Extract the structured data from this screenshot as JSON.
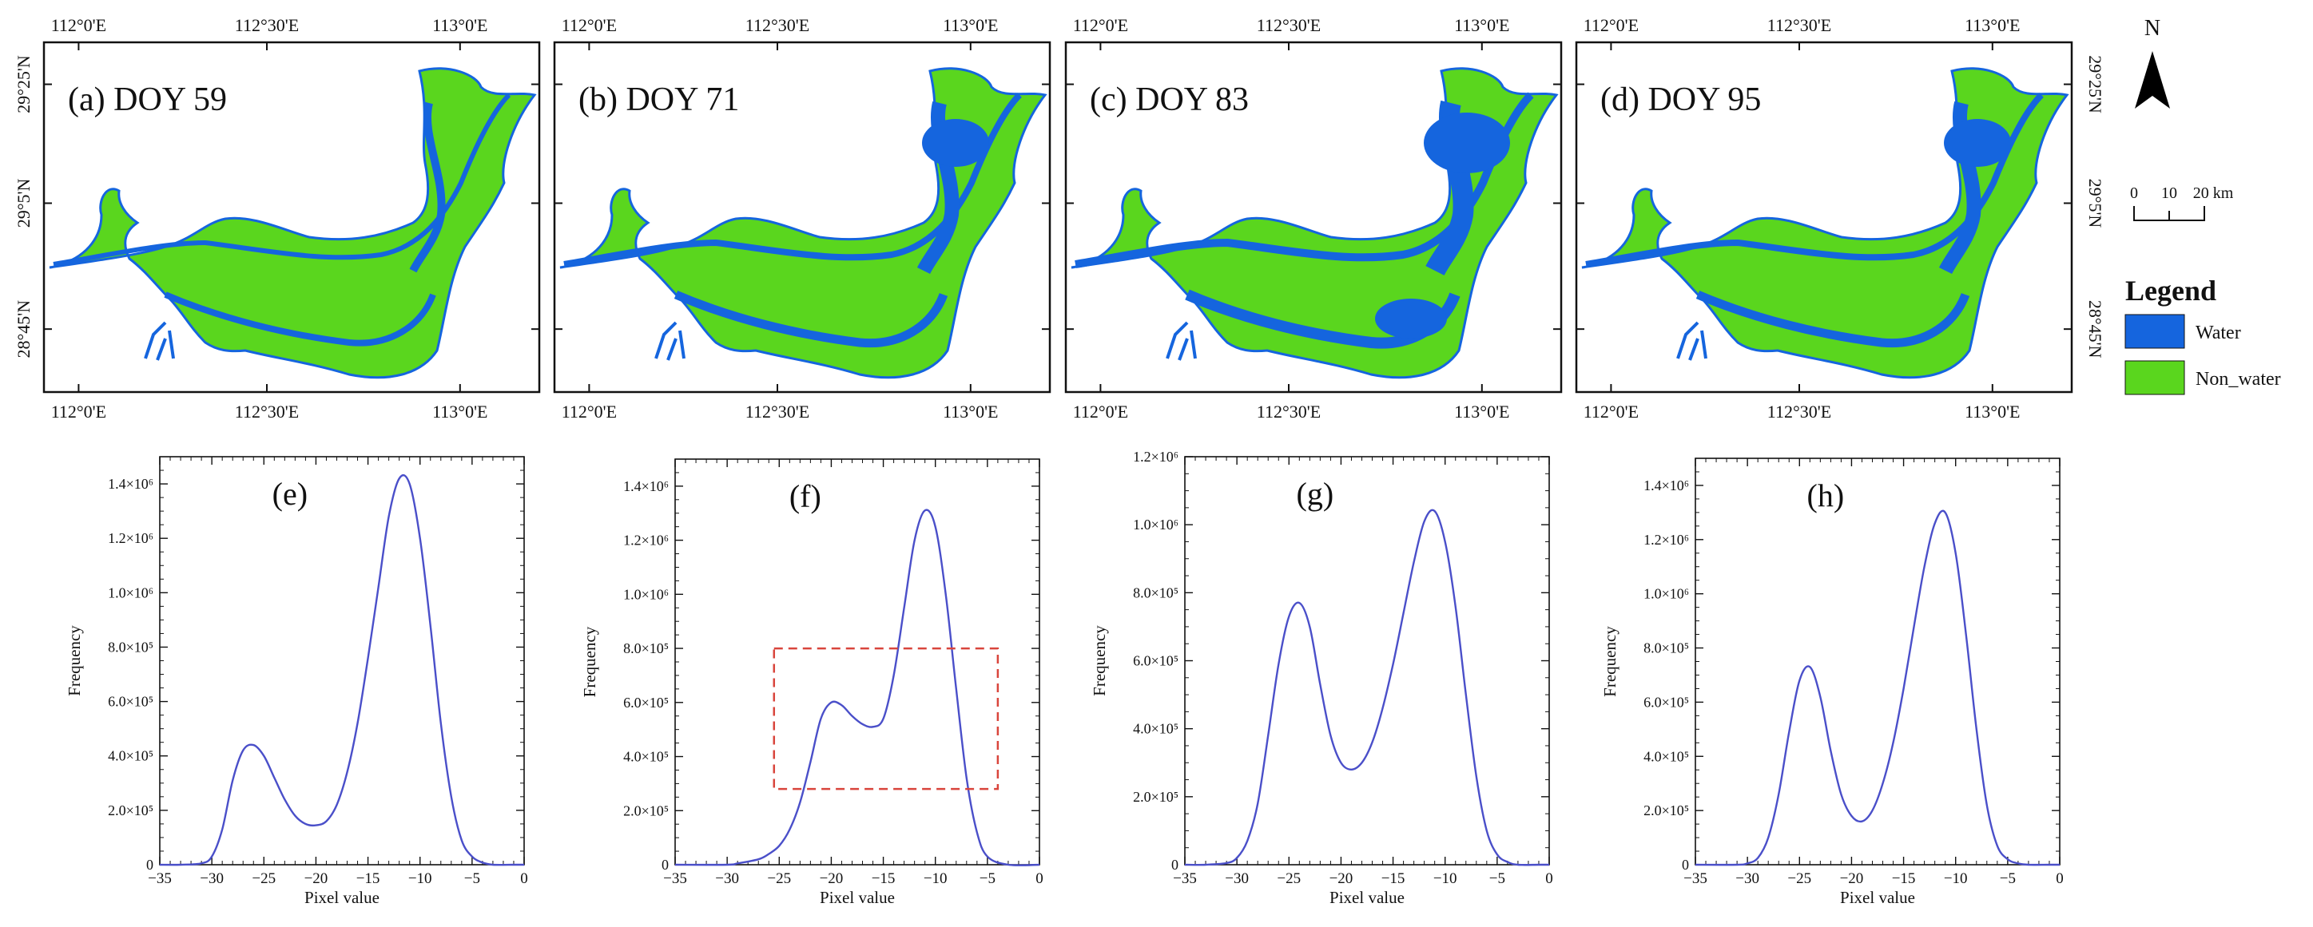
{
  "colors": {
    "water": "#1565de",
    "non_water": "#5ad61e",
    "curve": "#4a4fc9",
    "box": "#d9453c",
    "frame": "#111111"
  },
  "maps": {
    "lon_labels": [
      "112°0'E",
      "112°30'E",
      "113°0'E"
    ],
    "lat_labels": [
      "29°25'N",
      "29°5'N",
      "28°45'N"
    ],
    "panels": [
      {
        "label": "(a)  DOY 59"
      },
      {
        "label": "(b)  DOY 71"
      },
      {
        "label": "(c)  DOY 83"
      },
      {
        "label": "(d)  DOY 95"
      }
    ]
  },
  "north_arrow": {
    "label": "N",
    "icon": "north-arrow-icon"
  },
  "scale_bar": {
    "ticks": [
      "0",
      "10",
      "20 km"
    ]
  },
  "legend": {
    "title": "Legend",
    "items": [
      {
        "label": "Water",
        "color": "#1565de"
      },
      {
        "label": "Non_water",
        "color": "#5ad61e"
      }
    ]
  },
  "chart_data": [
    {
      "type": "line",
      "panel_label": "(e)",
      "title": "(e)",
      "xlabel": "Pixel value",
      "ylabel": "Frequency",
      "xlim": [
        -35,
        0
      ],
      "ylim": [
        0,
        1500000
      ],
      "xticks": [
        -35,
        -30,
        -25,
        -20,
        -15,
        -10,
        -5,
        0
      ],
      "xtick_labels": [
        "−35",
        "−30",
        "−25",
        "−20",
        "−15",
        "−10",
        "−5",
        "0"
      ],
      "yticks": [
        0,
        200000,
        400000,
        600000,
        800000,
        1000000,
        1200000,
        1400000
      ],
      "ytick_labels": [
        "0",
        "2.0×10⁵",
        "4.0×10⁵",
        "6.0×10⁵",
        "8.0×10⁵",
        "1.0×10⁶",
        "1.2×10⁶",
        "1.4×10⁶"
      ],
      "x": [
        -35,
        -33,
        -31,
        -30,
        -29,
        -28,
        -27,
        -26,
        -25,
        -24,
        -23,
        -22,
        -21,
        -20,
        -19,
        -18,
        -17,
        -16,
        -15,
        -14,
        -13,
        -12,
        -11,
        -10,
        -9,
        -8,
        -7,
        -6,
        -5,
        -4,
        -3,
        -1,
        0
      ],
      "series": [
        {
          "name": "Frequency",
          "values": [
            0,
            0,
            5000,
            30000,
            130000,
            310000,
            420000,
            440000,
            400000,
            320000,
            240000,
            180000,
            150000,
            145000,
            160000,
            220000,
            340000,
            520000,
            760000,
            1020000,
            1280000,
            1420000,
            1400000,
            1200000,
            880000,
            520000,
            250000,
            90000,
            30000,
            8000,
            0,
            0,
            0
          ]
        }
      ],
      "box": null
    },
    {
      "type": "line",
      "panel_label": "(f)",
      "title": "(f)",
      "xlabel": "Pixel value",
      "ylabel": "Frequency",
      "xlim": [
        -35,
        0
      ],
      "ylim": [
        0,
        1500000
      ],
      "xticks": [
        -35,
        -30,
        -25,
        -20,
        -15,
        -10,
        -5,
        0
      ],
      "xtick_labels": [
        "−35",
        "−30",
        "−25",
        "−20",
        "−15",
        "−10",
        "−5",
        "0"
      ],
      "yticks": [
        0,
        200000,
        400000,
        600000,
        800000,
        1000000,
        1200000,
        1400000
      ],
      "ytick_labels": [
        "0",
        "2.0×10⁵",
        "4.0×10⁵",
        "6.0×10⁵",
        "8.0×10⁵",
        "1.0×10⁶",
        "1.2×10⁶",
        "1.4×10⁶"
      ],
      "x": [
        -35,
        -30,
        -29,
        -27,
        -26,
        -25,
        -24,
        -23,
        -22,
        -21,
        -20,
        -19,
        -18,
        -17,
        -16,
        -15,
        -14,
        -13,
        -12,
        -11,
        -10,
        -9,
        -8,
        -7,
        -6,
        -5,
        -3,
        0
      ],
      "series": [
        {
          "name": "Frequency",
          "values": [
            0,
            0,
            5000,
            20000,
            40000,
            70000,
            130000,
            230000,
            380000,
            540000,
            600000,
            590000,
            550000,
            520000,
            510000,
            540000,
            700000,
            950000,
            1200000,
            1310000,
            1250000,
            1000000,
            650000,
            320000,
            120000,
            30000,
            0,
            0
          ]
        }
      ],
      "box": {
        "x0": -25.5,
        "x1": -4,
        "y0": 280000,
        "y1": 800000
      }
    },
    {
      "type": "line",
      "panel_label": "(g)",
      "title": "(g)",
      "xlabel": "Pixel value",
      "ylabel": "Frequency",
      "xlim": [
        -35,
        0
      ],
      "ylim": [
        0,
        1200000
      ],
      "xticks": [
        -35,
        -30,
        -25,
        -20,
        -15,
        -10,
        -5,
        0
      ],
      "xtick_labels": [
        "−35",
        "−30",
        "−25",
        "−20",
        "−15",
        "−10",
        "−5",
        "0"
      ],
      "yticks": [
        0,
        200000,
        400000,
        600000,
        800000,
        1000000,
        1200000
      ],
      "ytick_labels": [
        "0",
        "2.0×10⁵",
        "4.0×10⁵",
        "6.0×10⁵",
        "8.0×10⁵",
        "1.0×10⁶",
        "1.2×10⁶"
      ],
      "x": [
        -35,
        -33,
        -31,
        -30,
        -29,
        -28,
        -27,
        -26,
        -25,
        -24,
        -23,
        -22,
        -21,
        -20,
        -19,
        -18,
        -17,
        -16,
        -15,
        -14,
        -13,
        -12,
        -11,
        -10,
        -9,
        -8,
        -7,
        -6,
        -5,
        -4,
        -3,
        -1,
        0
      ],
      "series": [
        {
          "name": "Frequency",
          "values": [
            0,
            0,
            5000,
            20000,
            70000,
            180000,
            380000,
            590000,
            730000,
            770000,
            700000,
            530000,
            380000,
            300000,
            280000,
            300000,
            360000,
            460000,
            590000,
            740000,
            890000,
            1010000,
            1040000,
            950000,
            760000,
            500000,
            260000,
            100000,
            30000,
            8000,
            0,
            0,
            0
          ]
        }
      ],
      "box": null
    },
    {
      "type": "line",
      "panel_label": "(h)",
      "title": "(h)",
      "xlabel": "Pixel value",
      "ylabel": "Frequency",
      "xlim": [
        -35,
        0
      ],
      "ylim": [
        0,
        1500000
      ],
      "xticks": [
        -35,
        -30,
        -25,
        -20,
        -15,
        -10,
        -5,
        0
      ],
      "xtick_labels": [
        "−35",
        "−30",
        "−25",
        "−20",
        "−15",
        "−10",
        "−5",
        "0"
      ],
      "yticks": [
        0,
        200000,
        400000,
        600000,
        800000,
        1000000,
        1200000,
        1400000
      ],
      "ytick_labels": [
        "0",
        "2.0×10⁵",
        "4.0×10⁵",
        "6.0×10⁵",
        "8.0×10⁵",
        "1.0×10⁶",
        "1.2×10⁶",
        "1.4×10⁶"
      ],
      "x": [
        -35,
        -31,
        -30,
        -29,
        -28,
        -27,
        -26,
        -25,
        -24,
        -23,
        -22,
        -21,
        -20,
        -19,
        -18,
        -17,
        -16,
        -15,
        -14,
        -13,
        -12,
        -11,
        -10,
        -9,
        -8,
        -7,
        -6,
        -5,
        -4,
        -3,
        -1,
        0
      ],
      "series": [
        {
          "name": "Frequency",
          "values": [
            0,
            0,
            5000,
            25000,
            100000,
            260000,
            490000,
            680000,
            730000,
            620000,
            420000,
            260000,
            180000,
            160000,
            200000,
            300000,
            450000,
            650000,
            880000,
            1100000,
            1260000,
            1300000,
            1150000,
            850000,
            500000,
            220000,
            70000,
            20000,
            5000,
            0,
            0,
            0
          ]
        }
      ],
      "box": null
    }
  ]
}
